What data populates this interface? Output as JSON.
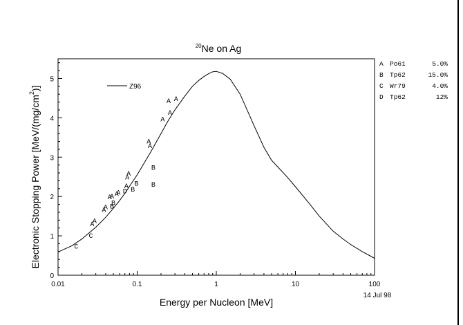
{
  "chart_data": {
    "type": "line",
    "title_superscript": "20",
    "title": "Ne on Ag",
    "xlabel": "Energy per Nucleon [MeV]",
    "ylabel": "Electronic Stopping Power [MeV/(mg/cm",
    "ylabel_superscript": "2",
    "ylabel_suffix": ")]",
    "x_scale": "log",
    "xlim": [
      0.01,
      100
    ],
    "ylim": [
      0,
      5.5
    ],
    "x_ticks": [
      {
        "value": 0.01,
        "label": "0.01"
      },
      {
        "value": 0.1,
        "label": "0.1"
      },
      {
        "value": 1,
        "label": "1"
      },
      {
        "value": 10,
        "label": "10"
      },
      {
        "value": 100,
        "label": "100"
      }
    ],
    "y_ticks": [
      0,
      1,
      2,
      3,
      4,
      5
    ],
    "grid": false,
    "date_stamp": "14 Jul 98",
    "series": [
      {
        "name": "Z96",
        "kind": "line",
        "points": [
          [
            0.01,
            0.59
          ],
          [
            0.015,
            0.75
          ],
          [
            0.02,
            0.92
          ],
          [
            0.03,
            1.22
          ],
          [
            0.04,
            1.47
          ],
          [
            0.05,
            1.7
          ],
          [
            0.06,
            1.9
          ],
          [
            0.07,
            2.08
          ],
          [
            0.08,
            2.26
          ],
          [
            0.1,
            2.55
          ],
          [
            0.12,
            2.82
          ],
          [
            0.15,
            3.15
          ],
          [
            0.2,
            3.6
          ],
          [
            0.25,
            3.95
          ],
          [
            0.3,
            4.2
          ],
          [
            0.4,
            4.55
          ],
          [
            0.5,
            4.8
          ],
          [
            0.6,
            4.95
          ],
          [
            0.7,
            5.05
          ],
          [
            0.8,
            5.12
          ],
          [
            0.9,
            5.17
          ],
          [
            1.0,
            5.18
          ],
          [
            1.2,
            5.13
          ],
          [
            1.5,
            4.98
          ],
          [
            2.0,
            4.6
          ],
          [
            3.0,
            3.8
          ],
          [
            4.0,
            3.25
          ],
          [
            5.0,
            2.92
          ],
          [
            6.0,
            2.75
          ],
          [
            8.0,
            2.48
          ],
          [
            10.0,
            2.25
          ],
          [
            15.0,
            1.82
          ],
          [
            20.0,
            1.5
          ],
          [
            30.0,
            1.12
          ],
          [
            40.0,
            0.92
          ],
          [
            50.0,
            0.78
          ],
          [
            70.0,
            0.6
          ],
          [
            100.0,
            0.43
          ]
        ]
      },
      {
        "name": "A",
        "kind": "points",
        "points": [
          [
            0.027,
            1.32
          ],
          [
            0.029,
            1.4
          ],
          [
            0.038,
            1.68
          ],
          [
            0.04,
            1.75
          ],
          [
            0.045,
            2.0
          ],
          [
            0.048,
            2.02
          ],
          [
            0.055,
            2.08
          ],
          [
            0.058,
            2.12
          ],
          [
            0.073,
            2.28
          ],
          [
            0.075,
            2.5
          ],
          [
            0.078,
            2.6
          ],
          [
            0.14,
            3.42
          ],
          [
            0.145,
            3.3
          ],
          [
            0.21,
            3.98
          ],
          [
            0.25,
            4.45
          ],
          [
            0.26,
            4.15
          ],
          [
            0.31,
            4.5
          ]
        ]
      },
      {
        "name": "B",
        "kind": "points",
        "points": [
          [
            0.048,
            1.77
          ],
          [
            0.05,
            1.85
          ],
          [
            0.088,
            2.2
          ],
          [
            0.098,
            2.35
          ],
          [
            0.16,
            2.75
          ],
          [
            0.16,
            2.32
          ]
        ]
      },
      {
        "name": "C",
        "kind": "points",
        "points": [
          [
            0.017,
            0.75
          ],
          [
            0.026,
            1.02
          ]
        ]
      },
      {
        "name": "D",
        "kind": "points",
        "points": [
          [
            0.07,
            2.15
          ]
        ]
      }
    ],
    "legend": {
      "placement": "top-left inside plot",
      "line_entry": "Z96"
    },
    "ref_legend": {
      "placement": "right of plot",
      "entries": [
        {
          "letter": "A",
          "ref": "Po61",
          "err": "5.0%"
        },
        {
          "letter": "B",
          "ref": "Tp62",
          "err": "15.0%"
        },
        {
          "letter": "C",
          "ref": "Wr79",
          "err": "4.0%"
        },
        {
          "letter": "D",
          "ref": "Tp62",
          "err": "12%"
        }
      ]
    }
  }
}
